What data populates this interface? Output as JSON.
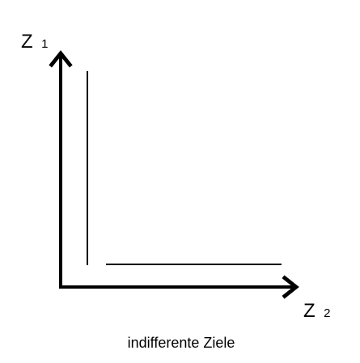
{
  "diagram": {
    "y_axis": {
      "letter": "Z",
      "index": "1"
    },
    "x_axis": {
      "letter": "Z",
      "index": "2"
    },
    "caption": "indifferente Ziele",
    "line_color": "#000000"
  }
}
